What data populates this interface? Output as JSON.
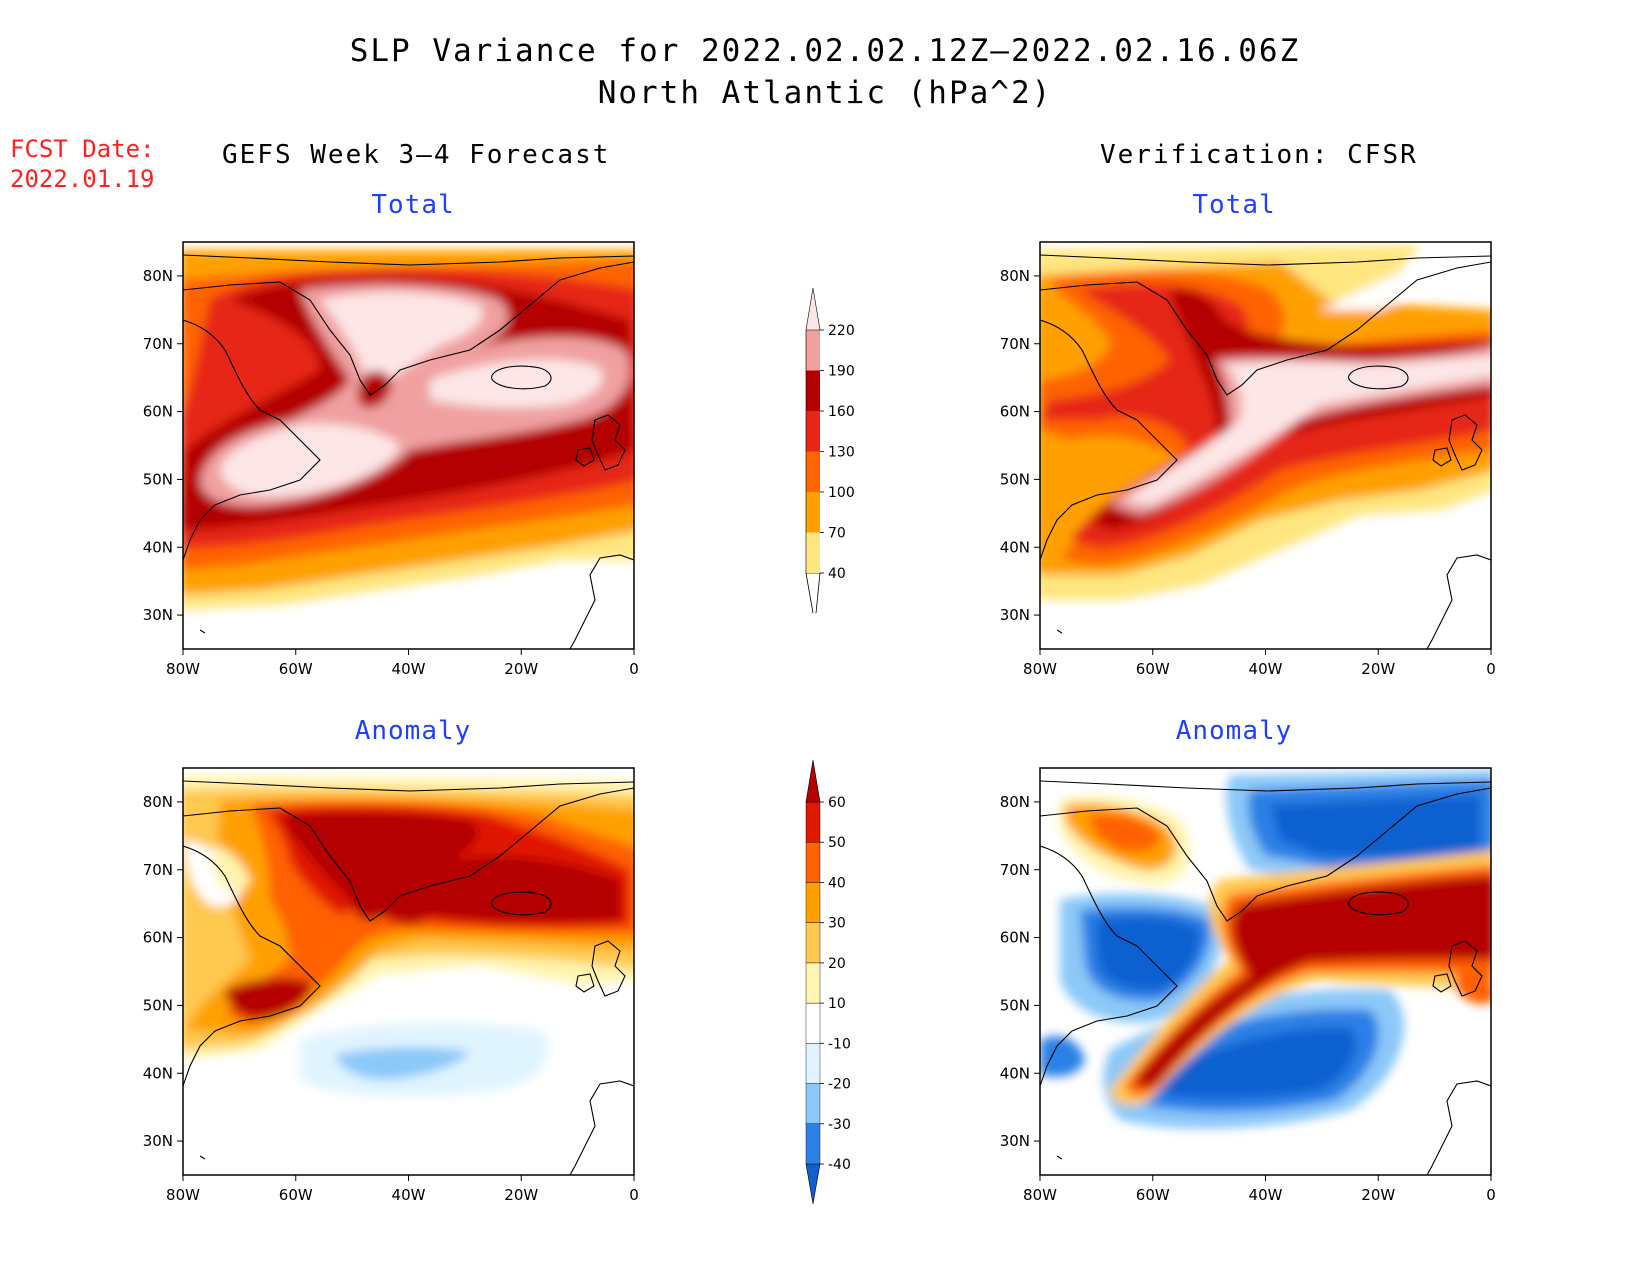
{
  "title": {
    "line1": "SLP Variance for 2022.02.02.12Z–2022.02.16.06Z",
    "line2": "North Atlantic (hPa^2)"
  },
  "fcst_date": "FCST Date:\n2022.01.19",
  "columns": {
    "left": "GEFS Week 3–4 Forecast",
    "right": "Verification: CFSR"
  },
  "panels": {
    "top_left": "Total",
    "top_right": "Total",
    "bottom_left": "Anomaly",
    "bottom_right": "Anomaly"
  },
  "axes": {
    "lon_ticks": [
      "80W",
      "60W",
      "40W",
      "20W",
      "0"
    ],
    "lat_ticks": [
      "80N",
      "70N",
      "60N",
      "50N",
      "40N",
      "30N"
    ],
    "lon_range": [
      -80,
      0
    ],
    "lat_range": [
      25,
      85
    ]
  },
  "colorbars": {
    "total": {
      "levels": [
        "40",
        "70",
        "100",
        "130",
        "160",
        "190",
        "220"
      ],
      "colors": [
        "#ffe680",
        "#ffa000",
        "#ff6400",
        "#e62814",
        "#b40000",
        "#f0a0a0",
        "#fde6e6"
      ]
    },
    "anomaly": {
      "levels": [
        "-40",
        "-30",
        "-20",
        "-10",
        "10",
        "20",
        "30",
        "40",
        "50",
        "60"
      ],
      "colors": [
        "#1060d0",
        "#2c80e6",
        "#8cc8f8",
        "#e0f4ff",
        "#ffffff",
        "#fff4b0",
        "#ffc850",
        "#ffa000",
        "#ff6000",
        "#e01800",
        "#b40000"
      ]
    }
  },
  "map_data": {
    "domain": "North Atlantic",
    "variable": "SLP variance",
    "units": "hPa^2"
  }
}
